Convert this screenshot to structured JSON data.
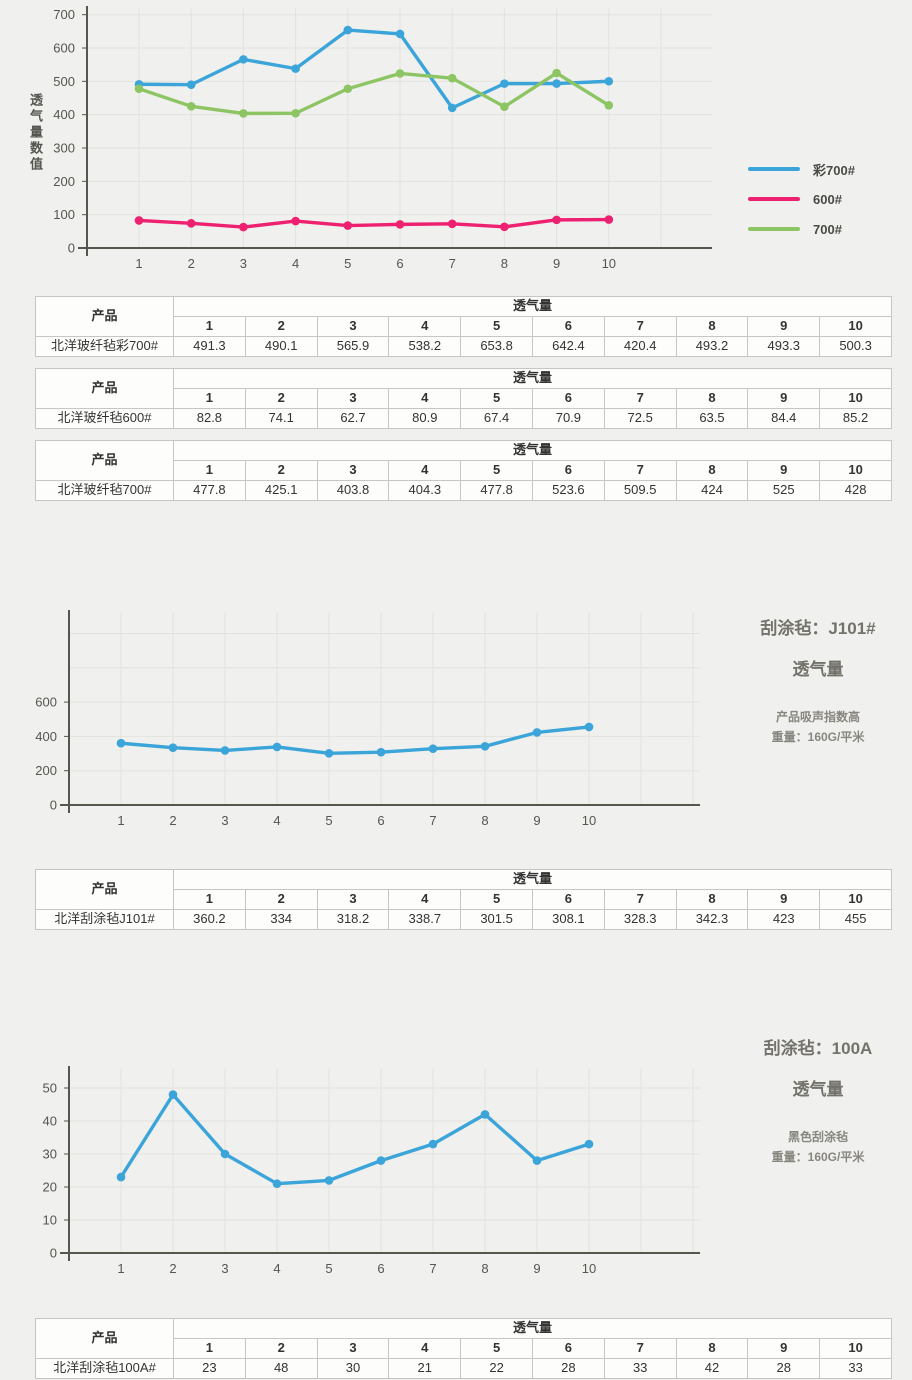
{
  "colors": {
    "background": "#f0f0ee",
    "blue": "#3ba4d9",
    "pink": "#ed2170",
    "green": "#8ec564",
    "axis": "#56554e",
    "grid": "#e2e2de",
    "table_border": "#c6c6c3",
    "text": "#333333"
  },
  "chart_data": [
    {
      "type": "line",
      "title": "",
      "ylabel": "透气量数值",
      "xlabel": "",
      "x": [
        1,
        2,
        3,
        4,
        5,
        6,
        7,
        8,
        9,
        10
      ],
      "ylim": [
        0,
        700
      ],
      "yticks": [
        0,
        100,
        200,
        300,
        400,
        500,
        600,
        700
      ],
      "gridline_values": [
        100,
        200,
        300,
        400,
        500,
        600,
        700
      ],
      "grid": true,
      "legend_position": "right",
      "series": [
        {
          "name": "彩700#",
          "color": "#3ba4d9",
          "values": [
            491.3,
            490.1,
            565.9,
            538.2,
            653.8,
            642.4,
            420.4,
            493.2,
            493.3,
            500.3
          ]
        },
        {
          "name": "600#",
          "color": "#ed2170",
          "values": [
            82.8,
            74.1,
            62.7,
            80.9,
            67.4,
            70.9,
            72.5,
            63.5,
            84.4,
            85.2
          ]
        },
        {
          "name": "700#",
          "color": "#8ec564",
          "values": [
            477.8,
            425.1,
            403.8,
            404.3,
            477.8,
            523.6,
            509.5,
            424,
            525,
            428
          ]
        }
      ]
    },
    {
      "type": "line",
      "title_line1": "刮涂毡：J101#",
      "title_line2": "透气量",
      "note_line1": "产品吸声指数高",
      "note_line2": "重量：160G/平米",
      "x": [
        1,
        2,
        3,
        4,
        5,
        6,
        7,
        8,
        9,
        10
      ],
      "ylim": [
        0,
        1000
      ],
      "yticks": [
        0,
        200,
        400,
        600
      ],
      "gridline_values": [
        200,
        400,
        600,
        800,
        1000
      ],
      "grid": true,
      "series": [
        {
          "name": "北洋刮涂毡J101#",
          "color": "#3ba4d9",
          "values": [
            360.2,
            334,
            318.2,
            338.7,
            301.5,
            308.1,
            328.3,
            342.3,
            423,
            455
          ]
        }
      ]
    },
    {
      "type": "line",
      "title_line1": "刮涂毡：100A",
      "title_line2": "透气量",
      "note_line1": "黑色刮涂毡",
      "note_line2": "重量：160G/平米",
      "x": [
        1,
        2,
        3,
        4,
        5,
        6,
        7,
        8,
        9,
        10
      ],
      "ylim": [
        0,
        50
      ],
      "yticks": [
        0,
        10,
        20,
        30,
        40,
        50
      ],
      "gridline_values": [
        10,
        20,
        30,
        40,
        50
      ],
      "grid": true,
      "series": [
        {
          "name": "北洋刮涂毡100A#",
          "color": "#3ba4d9",
          "values": [
            23,
            48,
            30,
            21,
            22,
            28,
            33,
            42,
            28,
            33
          ]
        }
      ]
    }
  ],
  "tables": {
    "product_col_header": "产品",
    "span_header": "透气量",
    "columns": [
      "1",
      "2",
      "3",
      "4",
      "5",
      "6",
      "7",
      "8",
      "9",
      "10"
    ],
    "items": [
      {
        "product": "北洋玻纤毡彩700#",
        "values": [
          "491.3",
          "490.1",
          "565.9",
          "538.2",
          "653.8",
          "642.4",
          "420.4",
          "493.2",
          "493.3",
          "500.3"
        ]
      },
      {
        "product": "北洋玻纤毡600#",
        "values": [
          "82.8",
          "74.1",
          "62.7",
          "80.9",
          "67.4",
          "70.9",
          "72.5",
          "63.5",
          "84.4",
          "85.2"
        ]
      },
      {
        "product": "北洋玻纤毡700#",
        "values": [
          "477.8",
          "425.1",
          "403.8",
          "404.3",
          "477.8",
          "523.6",
          "509.5",
          "424",
          "525",
          "428"
        ]
      },
      {
        "product": "北洋刮涂毡J101#",
        "values": [
          "360.2",
          "334",
          "318.2",
          "338.7",
          "301.5",
          "308.1",
          "328.3",
          "342.3",
          "423",
          "455"
        ]
      },
      {
        "product": "北洋刮涂毡100A#",
        "values": [
          "23",
          "48",
          "30",
          "21",
          "22",
          "28",
          "33",
          "42",
          "28",
          "33"
        ]
      }
    ]
  }
}
